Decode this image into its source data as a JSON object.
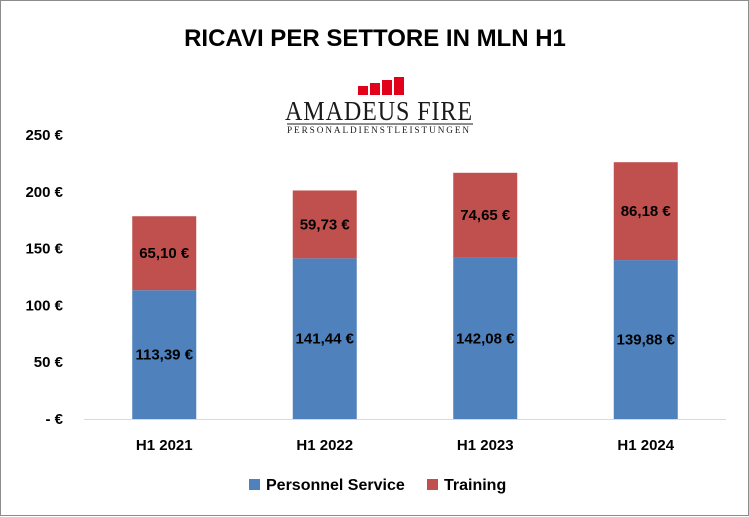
{
  "chart_data": {
    "type": "bar",
    "stacked": true,
    "title": "RICAVI PER SETTORE IN MLN H1",
    "categories": [
      "H1 2021",
      "H1 2022",
      "H1 2023",
      "H1 2024"
    ],
    "series": [
      {
        "name": "Personnel Service",
        "color": "#4f81bd",
        "values": [
          113.39,
          141.44,
          142.08,
          139.88
        ],
        "labels": [
          "113,39 €",
          "141,44 €",
          "142,08 €",
          "139,88 €"
        ]
      },
      {
        "name": "Training",
        "color": "#c0504d",
        "values": [
          65.1,
          59.73,
          74.65,
          86.18
        ],
        "labels": [
          "65,10 €",
          "59,73 €",
          "74,65 €",
          "86,18 €"
        ]
      }
    ],
    "ylim": [
      0,
      250
    ],
    "yticks": [
      0,
      50,
      100,
      150,
      200,
      250
    ],
    "ytick_labels": [
      "- €",
      "50 €",
      "100 €",
      "150 €",
      "200 €",
      "250 €"
    ],
    "xlabel": "",
    "ylabel": "",
    "grid": false,
    "legend_position": "bottom"
  },
  "logo": {
    "name": "AMADEUS FIRE",
    "subtitle": "PERSONALDIENSTLEISTUNGEN",
    "icon": "rising-bars-logo-icon",
    "color": "#e3001b"
  }
}
